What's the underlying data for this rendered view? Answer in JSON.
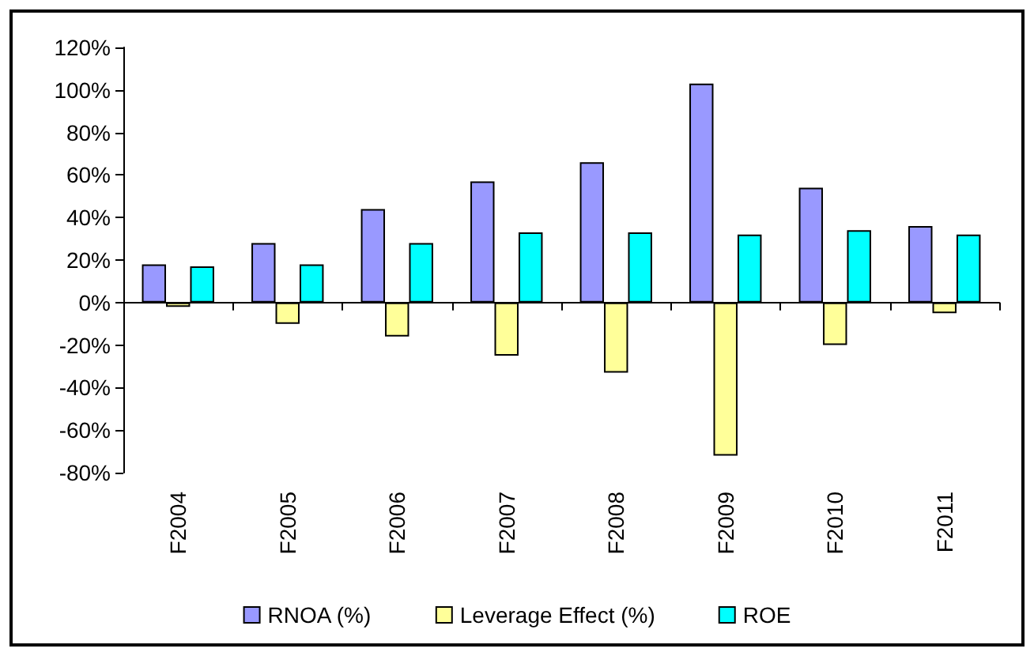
{
  "chart_data": {
    "type": "bar",
    "categories": [
      "F2004",
      "F2005",
      "F2006",
      "F2007",
      "F2008",
      "F2009",
      "F2010",
      "F2011"
    ],
    "series": [
      {
        "name": "RNOA (%)",
        "color": "#9999ff",
        "values": [
          18,
          28,
          44,
          57,
          66,
          103,
          54,
          36
        ]
      },
      {
        "name": "Leverage Effect (%)",
        "color": "#ffff99",
        "values": [
          -2,
          -10,
          -16,
          -25,
          -33,
          -72,
          -20,
          -5
        ]
      },
      {
        "name": "ROE",
        "color": "#00ffff",
        "values": [
          17,
          18,
          28,
          33,
          33,
          32,
          34,
          32
        ]
      }
    ],
    "ylim": [
      -80,
      120
    ],
    "yticks": [
      {
        "value": -80,
        "label": "-80%"
      },
      {
        "value": -60,
        "label": "-60%"
      },
      {
        "value": -40,
        "label": "-40%"
      },
      {
        "value": -20,
        "label": "-20%"
      },
      {
        "value": 0,
        "label": "0%"
      },
      {
        "value": 20,
        "label": "20%"
      },
      {
        "value": 40,
        "label": "40%"
      },
      {
        "value": 60,
        "label": "60%"
      },
      {
        "value": 80,
        "label": "80%"
      },
      {
        "value": 100,
        "label": "100%"
      },
      {
        "value": 120,
        "label": "120%"
      }
    ],
    "legend": "bottom"
  }
}
